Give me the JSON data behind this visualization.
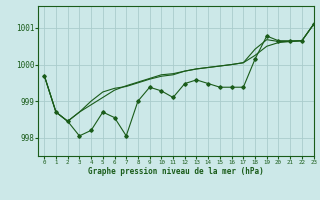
{
  "title": "Graphe pression niveau de la mer (hPa)",
  "background_color": "#cce8e8",
  "grid_color": "#aacccc",
  "line_color": "#1a5c1a",
  "xlim": [
    -0.5,
    23
  ],
  "ylim": [
    997.5,
    1001.6
  ],
  "yticks": [
    998,
    999,
    1000,
    1001
  ],
  "xticks": [
    0,
    1,
    2,
    3,
    4,
    5,
    6,
    7,
    8,
    9,
    10,
    11,
    12,
    13,
    14,
    15,
    16,
    17,
    18,
    19,
    20,
    21,
    22,
    23
  ],
  "series1": [
    999.7,
    998.7,
    998.45,
    998.05,
    998.2,
    998.7,
    998.55,
    998.05,
    999.0,
    999.38,
    999.28,
    999.1,
    999.48,
    999.58,
    999.48,
    999.38,
    999.38,
    999.38,
    1000.15,
    1000.78,
    1000.65,
    1000.65,
    1000.65,
    1001.1
  ],
  "series2": [
    999.7,
    998.7,
    998.45,
    998.7,
    998.9,
    999.1,
    999.3,
    999.42,
    999.52,
    999.62,
    999.72,
    999.75,
    999.82,
    999.88,
    999.92,
    999.96,
    1000.0,
    1000.05,
    1000.25,
    1000.5,
    1000.6,
    1000.63,
    1000.65,
    1001.1
  ],
  "series3": [
    999.7,
    998.7,
    998.45,
    998.7,
    999.0,
    999.25,
    999.35,
    999.4,
    999.5,
    999.6,
    999.68,
    999.72,
    999.82,
    999.88,
    999.92,
    999.96,
    1000.0,
    1000.05,
    1000.42,
    1000.68,
    1000.63,
    1000.63,
    1000.65,
    1001.1
  ]
}
